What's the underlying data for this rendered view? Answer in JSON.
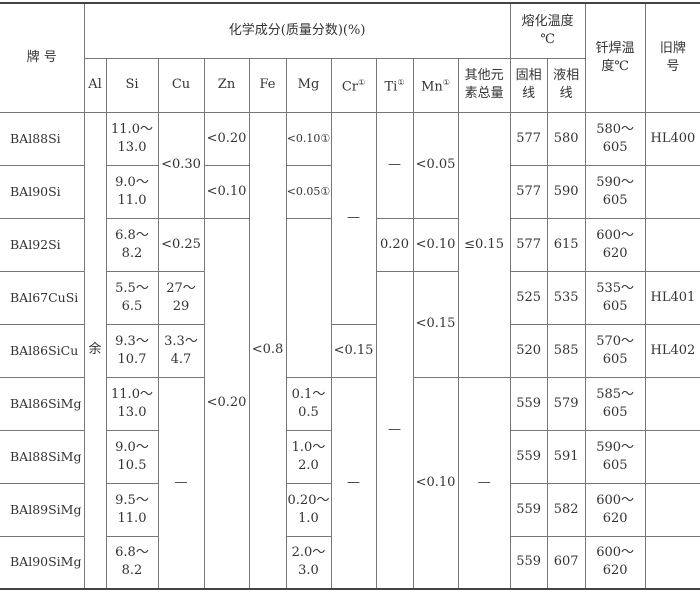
{
  "header": {
    "grade": "牌 号",
    "composition": "化学成分(质量分数)(%)",
    "melting": "熔化温度\n℃",
    "brazing": "钎焊温\n度℃",
    "old": "旧牌\n号",
    "note": "①",
    "elements": [
      "Al",
      "Si",
      "Cu",
      "Zn",
      "Fe",
      "Mg",
      "Cr",
      "Ti",
      "Mn",
      "其他元\n素总量"
    ],
    "solidus": "固相\n线",
    "liquidus": "液相\n线"
  },
  "rows": [
    {
      "grade": "BAl88Si",
      "si": "11.0～\n13.0",
      "solidus": "577",
      "liquidus": "580",
      "brazing": "580～\n605",
      "old": "HL400"
    },
    {
      "grade": "BAl90Si",
      "si": "9.0～\n11.0",
      "solidus": "577",
      "liquidus": "590",
      "brazing": "590～\n605",
      "old": ""
    },
    {
      "grade": "BAl92Si",
      "si": "6.8～\n8.2",
      "solidus": "577",
      "liquidus": "615",
      "brazing": "600～\n620",
      "old": ""
    },
    {
      "grade": "BAl67CuSi",
      "si": "5.5～\n6.5",
      "solidus": "525",
      "liquidus": "535",
      "brazing": "535～\n605",
      "old": "HL401"
    },
    {
      "grade": "BAl86SiCu",
      "si": "9.3～\n10.7",
      "solidus": "520",
      "liquidus": "585",
      "brazing": "570～\n605",
      "old": "HL402"
    },
    {
      "grade": "BAl86SiMg",
      "si": "11.0～\n13.0",
      "solidus": "559",
      "liquidus": "579",
      "brazing": "585～\n605",
      "old": ""
    },
    {
      "grade": "BAl88SiMg",
      "si": "9.0～\n10.5",
      "solidus": "559",
      "liquidus": "591",
      "brazing": "590～\n605",
      "old": ""
    },
    {
      "grade": "BAl89SiMg",
      "si": "9.5～\n11.0",
      "solidus": "559",
      "liquidus": "582",
      "brazing": "600～\n620",
      "old": ""
    },
    {
      "grade": "BAl90SiMg",
      "si": "6.8～\n8.2",
      "solidus": "559",
      "liquidus": "607",
      "brazing": "600～\n620",
      "old": ""
    }
  ],
  "merged": {
    "al": "余",
    "cu": [
      "<0.30",
      "<0.25",
      "27～\n29",
      "3.3～\n4.7",
      "—"
    ],
    "zn": [
      "<0.20",
      "<0.10",
      "<0.20"
    ],
    "fe": "<0.8",
    "mg": [
      "<0.10①",
      "<0.05①",
      "",
      "0.1～\n0.5",
      "1.0～\n2.0",
      "0.20～\n1.0",
      "2.0～\n3.0"
    ],
    "cr": [
      "—",
      "<0.15",
      "—"
    ],
    "ti": [
      "—",
      "0.20",
      "—"
    ],
    "mn": [
      "<0.05",
      "<0.10",
      "<0.15",
      "<0.10"
    ],
    "other": [
      "≤0.15",
      "—"
    ]
  }
}
